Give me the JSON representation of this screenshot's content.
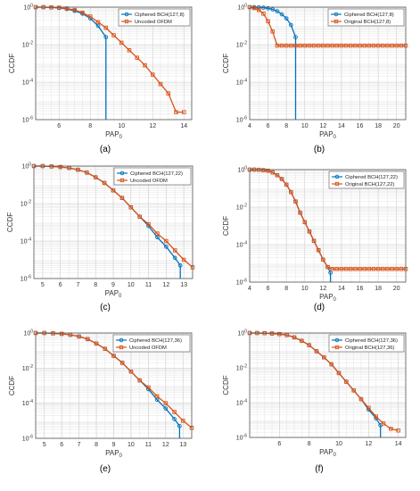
{
  "chart_data": [
    {
      "type": "line",
      "panel": "(a)",
      "xlabel": "PAP",
      "xlabel_sub": "0",
      "ylabel": "CCDF",
      "xlim": [
        4.5,
        14.5
      ],
      "ylim": [
        -6,
        0
      ],
      "yscale": "log",
      "grid": true,
      "legend": "top-right",
      "xticks": [
        6,
        8,
        10,
        12,
        14
      ],
      "series": [
        {
          "name": "Ciphered BCH(127,8)",
          "color": "#0072BD",
          "marker": "circle",
          "x": [
            4.5,
            5.0,
            5.5,
            6.0,
            6.5,
            7.0,
            7.5,
            8.0,
            8.5,
            9.0,
            9.0
          ],
          "y": [
            0,
            0,
            -0.02,
            -0.04,
            -0.1,
            -0.2,
            -0.35,
            -0.6,
            -1.0,
            -1.6,
            -6
          ]
        },
        {
          "name": "Uncoded OFDM",
          "color": "#D95319",
          "marker": "square",
          "x": [
            4.5,
            5.0,
            5.5,
            6.0,
            6.5,
            7.0,
            7.5,
            8.0,
            8.5,
            9.0,
            9.5,
            10.0,
            10.5,
            11.0,
            11.5,
            12.0,
            12.5,
            13.0,
            13.5,
            14.0
          ],
          "y": [
            0,
            0,
            -0.01,
            -0.03,
            -0.07,
            -0.15,
            -0.3,
            -0.5,
            -0.8,
            -1.1,
            -1.5,
            -1.9,
            -2.3,
            -2.7,
            -3.1,
            -3.6,
            -4.1,
            -4.6,
            -5.6,
            -5.6
          ]
        }
      ]
    },
    {
      "type": "line",
      "panel": "(b)",
      "xlabel": "PAP",
      "xlabel_sub": "0",
      "ylabel": "CCDF",
      "xlim": [
        4,
        21
      ],
      "ylim": [
        -6,
        0
      ],
      "yscale": "log",
      "grid": true,
      "legend": "top-right",
      "xticks": [
        4,
        6,
        8,
        10,
        12,
        14,
        16,
        18,
        20
      ],
      "series": [
        {
          "name": "Ciphered BCH(127,8)",
          "color": "#0072BD",
          "marker": "circle",
          "x": [
            4,
            4.5,
            5,
            5.5,
            6,
            6.5,
            7,
            7.5,
            8,
            8.5,
            9,
            9
          ],
          "y": [
            0,
            0,
            -0.01,
            -0.03,
            -0.06,
            -0.12,
            -0.22,
            -0.38,
            -0.6,
            -0.95,
            -1.6,
            -6
          ]
        },
        {
          "name": "Original BCH(127,8)",
          "color": "#D95319",
          "marker": "square",
          "x": [
            4,
            4.5,
            5,
            5.5,
            6,
            6.5,
            7,
            7.5,
            8,
            8.5,
            9,
            9.5,
            10,
            10.5,
            11,
            11.5,
            12,
            12.5,
            13,
            13.5,
            14,
            14.5,
            15,
            15.5,
            16,
            16.5,
            17,
            17.5,
            18,
            18.5,
            19,
            19.5,
            20,
            20.5,
            21
          ],
          "y": [
            0,
            -0.05,
            -0.15,
            -0.35,
            -0.75,
            -1.3,
            -2.05,
            -2.05,
            -2.05,
            -2.05,
            -2.05,
            -2.05,
            -2.05,
            -2.05,
            -2.05,
            -2.05,
            -2.05,
            -2.05,
            -2.05,
            -2.05,
            -2.05,
            -2.05,
            -2.05,
            -2.05,
            -2.05,
            -2.05,
            -2.05,
            -2.05,
            -2.05,
            -2.05,
            -2.05,
            -2.05,
            -2.05,
            -2.05,
            -2.05
          ]
        }
      ]
    },
    {
      "type": "line",
      "panel": "(c)",
      "xlabel": "PAP",
      "xlabel_sub": "0",
      "ylabel": "CCDF",
      "xlim": [
        4.5,
        13.5
      ],
      "ylim": [
        -6,
        0
      ],
      "yscale": "log",
      "grid": true,
      "legend": "top-right",
      "xticks": [
        5,
        6,
        7,
        8,
        9,
        10,
        11,
        12,
        13
      ],
      "series": [
        {
          "name": "Ciphered BCH(127,22)",
          "color": "#0072BD",
          "marker": "circle",
          "x": [
            4.5,
            5.0,
            5.5,
            6.0,
            6.5,
            7.0,
            7.5,
            8.0,
            8.5,
            9.0,
            9.5,
            10.0,
            10.5,
            11.0,
            11.5,
            12.0,
            12.5,
            12.8,
            12.8
          ],
          "y": [
            0,
            0,
            -0.02,
            -0.05,
            -0.1,
            -0.2,
            -0.35,
            -0.6,
            -0.9,
            -1.3,
            -1.7,
            -2.2,
            -2.7,
            -3.2,
            -3.8,
            -4.3,
            -4.9,
            -5.3,
            -6
          ]
        },
        {
          "name": "Uncoded OFDM",
          "color": "#D95319",
          "marker": "square",
          "x": [
            4.5,
            5.0,
            5.5,
            6.0,
            6.5,
            7.0,
            7.5,
            8.0,
            8.5,
            9.0,
            9.5,
            10.0,
            10.5,
            11.0,
            11.5,
            12.0,
            12.5,
            13.0,
            13.5
          ],
          "y": [
            0,
            0,
            -0.02,
            -0.05,
            -0.1,
            -0.2,
            -0.35,
            -0.6,
            -0.9,
            -1.3,
            -1.7,
            -2.2,
            -2.7,
            -3.1,
            -3.6,
            -4.0,
            -4.5,
            -5.0,
            -5.4
          ]
        }
      ]
    },
    {
      "type": "line",
      "panel": "(d)",
      "xlabel": "PAP",
      "xlabel_sub": "0",
      "ylabel": "CCDF",
      "xlim": [
        4,
        21
      ],
      "ylim": [
        -6,
        0
      ],
      "yscale": "log",
      "grid": true,
      "legend": "top-right",
      "xticks": [
        4,
        6,
        8,
        10,
        12,
        14,
        16,
        18,
        20
      ],
      "series": [
        {
          "name": "Ciphered BCH(127,22)",
          "color": "#0072BD",
          "marker": "circle",
          "x": [
            4,
            4.5,
            5,
            5.5,
            6,
            6.5,
            7,
            7.5,
            8,
            8.5,
            9,
            9.5,
            10,
            10.5,
            11,
            11.5,
            12,
            12.5,
            12.8,
            12.8
          ],
          "y": [
            0,
            0,
            -0.01,
            -0.03,
            -0.06,
            -0.15,
            -0.3,
            -0.5,
            -0.8,
            -1.2,
            -1.7,
            -2.3,
            -2.8,
            -3.3,
            -3.8,
            -4.3,
            -4.8,
            -5.2,
            -5.5,
            -6
          ]
        },
        {
          "name": "Original BCH(127,22)",
          "color": "#D95319",
          "marker": "square",
          "x": [
            4,
            4.5,
            5,
            5.5,
            6,
            6.5,
            7,
            7.5,
            8,
            8.5,
            9,
            9.5,
            10,
            10.5,
            11,
            11.5,
            12,
            12.5,
            13,
            13.5,
            14,
            14.5,
            15,
            15.5,
            16,
            16.5,
            17,
            17.5,
            18,
            18.5,
            19,
            19.5,
            20,
            20.5,
            21
          ],
          "y": [
            0,
            0,
            -0.01,
            -0.03,
            -0.06,
            -0.15,
            -0.3,
            -0.5,
            -0.8,
            -1.2,
            -1.7,
            -2.3,
            -2.8,
            -3.3,
            -3.8,
            -4.3,
            -4.8,
            -5.2,
            -5.3,
            -5.3,
            -5.3,
            -5.3,
            -5.3,
            -5.3,
            -5.3,
            -5.3,
            -5.3,
            -5.3,
            -5.3,
            -5.3,
            -5.3,
            -5.3,
            -5.3,
            -5.3,
            -5.3
          ]
        }
      ]
    },
    {
      "type": "line",
      "panel": "(e)",
      "xlabel": "PAP",
      "xlabel_sub": "0",
      "ylabel": "CCDF",
      "xlim": [
        4.5,
        13.5
      ],
      "ylim": [
        -6,
        0
      ],
      "yscale": "log",
      "grid": true,
      "legend": "top-right",
      "xticks": [
        5,
        6,
        7,
        8,
        9,
        10,
        11,
        12,
        13
      ],
      "series": [
        {
          "name": "Ciphered BCH(127,36)",
          "color": "#0072BD",
          "marker": "circle",
          "x": [
            4.5,
            5.0,
            5.5,
            6.0,
            6.5,
            7.0,
            7.5,
            8.0,
            8.5,
            9.0,
            9.5,
            10.0,
            10.5,
            11.0,
            11.5,
            12.0,
            12.5,
            12.8,
            12.8
          ],
          "y": [
            0,
            0,
            -0.02,
            -0.05,
            -0.1,
            -0.2,
            -0.35,
            -0.6,
            -0.9,
            -1.3,
            -1.7,
            -2.2,
            -2.7,
            -3.2,
            -3.8,
            -4.3,
            -4.9,
            -5.3,
            -6
          ]
        },
        {
          "name": "Uncoded OFDM",
          "color": "#D95319",
          "marker": "square",
          "x": [
            4.5,
            5.0,
            5.5,
            6.0,
            6.5,
            7.0,
            7.5,
            8.0,
            8.5,
            9.0,
            9.5,
            10.0,
            10.5,
            11.0,
            11.5,
            12.0,
            12.5,
            13.0,
            13.5
          ],
          "y": [
            0,
            0,
            -0.02,
            -0.05,
            -0.1,
            -0.2,
            -0.35,
            -0.6,
            -0.9,
            -1.3,
            -1.7,
            -2.2,
            -2.7,
            -3.1,
            -3.6,
            -4.0,
            -4.5,
            -5.0,
            -5.4
          ]
        }
      ]
    },
    {
      "type": "line",
      "panel": "(f)",
      "xlabel": "PAP",
      "xlabel_sub": "0",
      "ylabel": "CCDF",
      "xlim": [
        4,
        14.5
      ],
      "ylim": [
        -6,
        0
      ],
      "yscale": "log",
      "grid": true,
      "legend": "top-right",
      "xticks": [
        6,
        8,
        10,
        12,
        14
      ],
      "series": [
        {
          "name": "Ciphered BCH(127,36)",
          "color": "#0072BD",
          "marker": "circle",
          "x": [
            4,
            4.5,
            5,
            5.5,
            6,
            6.5,
            7,
            7.5,
            8,
            8.5,
            9,
            9.5,
            10,
            10.5,
            11,
            11.5,
            12,
            12.5,
            12.8,
            12.8
          ],
          "y": [
            0,
            0,
            -0.01,
            -0.03,
            -0.06,
            -0.12,
            -0.25,
            -0.45,
            -0.7,
            -1.05,
            -1.4,
            -1.8,
            -2.3,
            -2.8,
            -3.3,
            -3.8,
            -4.4,
            -4.9,
            -5.3,
            -6
          ]
        },
        {
          "name": "Original BCH(127,36)",
          "color": "#D95319",
          "marker": "square",
          "x": [
            4,
            4.5,
            5,
            5.5,
            6,
            6.5,
            7,
            7.5,
            8,
            8.5,
            9,
            9.5,
            10,
            10.5,
            11,
            11.5,
            12,
            12.5,
            13,
            13.5,
            14
          ],
          "y": [
            0,
            0,
            -0.01,
            -0.03,
            -0.06,
            -0.12,
            -0.25,
            -0.45,
            -0.7,
            -1.05,
            -1.4,
            -1.8,
            -2.3,
            -2.8,
            -3.3,
            -3.8,
            -4.3,
            -4.8,
            -5.2,
            -5.5,
            -5.6
          ]
        }
      ]
    }
  ]
}
